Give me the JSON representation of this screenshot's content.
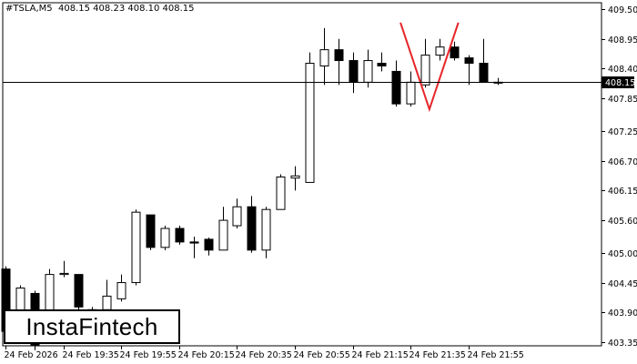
{
  "header": {
    "symbol": "#TSLA,M5",
    "ohlc": "408.15 408.23 408.10 408.15"
  },
  "logo": {
    "text": "InstaFintech"
  },
  "colors": {
    "background": "#ffffff",
    "candle_outline": "#000000",
    "bull_fill": "#ffffff",
    "bear_fill": "#000000",
    "pattern": "#e8262a",
    "price_tag_bg": "#000000",
    "price_tag_text": "#ffffff"
  },
  "chart_data": {
    "type": "candlestick",
    "title": "#TSLA,M5",
    "price_axis": {
      "ticks": [
        "409.50",
        "408.95",
        "408.40",
        "407.85",
        "407.25",
        "406.70",
        "406.15",
        "405.60",
        "405.00",
        "404.45",
        "403.90",
        "403.35"
      ],
      "range": [
        403.35,
        409.5
      ]
    },
    "time_axis": {
      "ticks": [
        "24 Feb 2026",
        "24 Feb 19:35",
        "24 Feb 19:55",
        "24 Feb 20:15",
        "24 Feb 20:35",
        "24 Feb 20:55",
        "24 Feb 21:15",
        "24 Feb 21:35",
        "24 Feb 21:55"
      ]
    },
    "current_price": "408.15",
    "candles": [
      {
        "o": 404.7,
        "h": 404.75,
        "l": 403.45,
        "c": 403.55
      },
      {
        "o": 403.75,
        "h": 404.4,
        "l": 403.6,
        "c": 404.35
      },
      {
        "o": 404.25,
        "h": 404.3,
        "l": 403.2,
        "c": 403.3
      },
      {
        "o": 403.8,
        "h": 404.7,
        "l": 403.75,
        "c": 404.6
      },
      {
        "o": 404.6,
        "h": 404.85,
        "l": 404.55,
        "c": 404.62
      },
      {
        "o": 404.6,
        "h": 404.6,
        "l": 403.95,
        "c": 404.0
      },
      {
        "o": 403.9,
        "h": 404.0,
        "l": 403.85,
        "c": 403.95
      },
      {
        "o": 403.95,
        "h": 404.5,
        "l": 403.9,
        "c": 404.2
      },
      {
        "o": 404.15,
        "h": 404.6,
        "l": 404.1,
        "c": 404.45
      },
      {
        "o": 404.45,
        "h": 405.8,
        "l": 404.4,
        "c": 405.75
      },
      {
        "o": 405.7,
        "h": 405.7,
        "l": 405.05,
        "c": 405.1
      },
      {
        "o": 405.1,
        "h": 405.5,
        "l": 405.05,
        "c": 405.45
      },
      {
        "o": 405.45,
        "h": 405.5,
        "l": 405.15,
        "c": 405.2
      },
      {
        "o": 405.2,
        "h": 405.3,
        "l": 404.9,
        "c": 405.18
      },
      {
        "o": 405.25,
        "h": 405.28,
        "l": 404.95,
        "c": 405.05
      },
      {
        "o": 405.05,
        "h": 405.85,
        "l": 405.05,
        "c": 405.6
      },
      {
        "o": 405.5,
        "h": 406.0,
        "l": 405.45,
        "c": 405.85
      },
      {
        "o": 405.85,
        "h": 406.05,
        "l": 405.0,
        "c": 405.05
      },
      {
        "o": 405.05,
        "h": 405.85,
        "l": 404.9,
        "c": 405.8
      },
      {
        "o": 405.8,
        "h": 406.45,
        "l": 405.8,
        "c": 406.4
      },
      {
        "o": 406.38,
        "h": 406.6,
        "l": 406.15,
        "c": 406.42
      },
      {
        "o": 406.3,
        "h": 408.7,
        "l": 406.3,
        "c": 408.5
      },
      {
        "o": 408.45,
        "h": 409.15,
        "l": 408.1,
        "c": 408.75
      },
      {
        "o": 408.75,
        "h": 408.95,
        "l": 408.1,
        "c": 408.55
      },
      {
        "o": 408.55,
        "h": 408.7,
        "l": 407.95,
        "c": 408.15
      },
      {
        "o": 408.15,
        "h": 408.75,
        "l": 408.05,
        "c": 408.55
      },
      {
        "o": 408.5,
        "h": 408.7,
        "l": 408.35,
        "c": 408.45
      },
      {
        "o": 408.35,
        "h": 408.55,
        "l": 407.7,
        "c": 407.75
      },
      {
        "o": 407.75,
        "h": 408.35,
        "l": 407.7,
        "c": 408.15
      },
      {
        "o": 408.1,
        "h": 408.95,
        "l": 408.05,
        "c": 408.65
      },
      {
        "o": 408.65,
        "h": 408.95,
        "l": 408.55,
        "c": 408.8
      },
      {
        "o": 408.8,
        "h": 408.9,
        "l": 408.55,
        "c": 408.6
      },
      {
        "o": 408.6,
        "h": 408.65,
        "l": 408.1,
        "c": 408.5
      },
      {
        "o": 408.5,
        "h": 408.95,
        "l": 408.15,
        "c": 408.15
      },
      {
        "o": 408.15,
        "h": 408.23,
        "l": 408.1,
        "c": 408.15
      }
    ],
    "pattern": {
      "shape": "double top",
      "points": [
        {
          "i": 27.3,
          "price": 409.25
        },
        {
          "i": 29.3,
          "price": 407.65
        },
        {
          "i": 31.3,
          "price": 409.25
        }
      ]
    },
    "grid": false
  }
}
